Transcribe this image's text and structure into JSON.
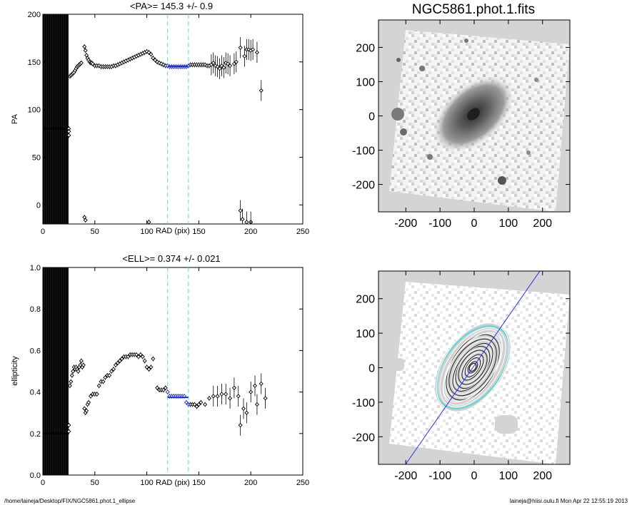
{
  "figure_title": "NGC5861.phot.1.fits",
  "footer": {
    "path": "/home/laineja/Desktop/FIX/NGC5861.phot.1_ellipse",
    "stamp": "laineja@hiisi.oulu.fi  Mon Apr 22 12:55:19 2013"
  },
  "colors": {
    "fit": "#1f2fd0",
    "guide": "#5fd8d8",
    "mask": "#d4d4d4",
    "galaxy": "#555555",
    "major_axis": "#2233ee"
  },
  "chart_data": [
    {
      "type": "scatter",
      "title": "<PA>= 145.3 +/-   0.9",
      "xlabel": "RAD (pix)",
      "ylabel": "PA",
      "xlim": [
        0,
        250
      ],
      "ylim": [
        -20,
        200
      ],
      "xticks": [
        0,
        50,
        100,
        150,
        200,
        250
      ],
      "yticks": [
        0,
        50,
        100,
        150,
        200
      ],
      "guide_x": [
        120,
        140
      ],
      "fit_line": {
        "x": [
          120,
          140
        ],
        "y": 145.3
      },
      "inner_dense_region": {
        "x_from": 0,
        "x_to": 25,
        "y_level": 80
      },
      "points": [
        [
          26,
          135
        ],
        [
          27,
          136
        ],
        [
          28,
          137
        ],
        [
          29,
          138
        ],
        [
          30,
          139
        ],
        [
          31,
          141
        ],
        [
          32,
          143
        ],
        [
          33,
          145
        ],
        [
          34,
          146
        ],
        [
          35,
          147
        ],
        [
          36,
          148
        ],
        [
          37,
          149
        ],
        [
          40,
          166
        ],
        [
          41,
          162
        ],
        [
          42,
          157
        ],
        [
          43,
          154
        ],
        [
          44,
          152
        ],
        [
          45,
          150
        ],
        [
          46,
          149
        ],
        [
          47,
          149
        ],
        [
          48,
          148
        ],
        [
          50,
          146
        ],
        [
          52,
          146
        ],
        [
          54,
          146
        ],
        [
          56,
          145
        ],
        [
          58,
          145
        ],
        [
          60,
          145
        ],
        [
          62,
          145
        ],
        [
          64,
          145
        ],
        [
          66,
          145
        ],
        [
          68,
          146
        ],
        [
          70,
          146
        ],
        [
          72,
          147
        ],
        [
          74,
          148
        ],
        [
          76,
          149
        ],
        [
          78,
          150
        ],
        [
          80,
          151
        ],
        [
          82,
          152
        ],
        [
          84,
          153
        ],
        [
          86,
          154
        ],
        [
          88,
          155
        ],
        [
          90,
          156
        ],
        [
          92,
          157
        ],
        [
          94,
          158
        ],
        [
          96,
          159
        ],
        [
          98,
          160
        ],
        [
          100,
          161
        ],
        [
          102,
          160
        ],
        [
          104,
          158
        ],
        [
          106,
          154
        ],
        [
          108,
          152
        ],
        [
          110,
          150
        ],
        [
          112,
          149
        ],
        [
          114,
          148
        ],
        [
          116,
          147
        ],
        [
          118,
          146
        ],
        [
          120,
          146
        ],
        [
          122,
          145
        ],
        [
          124,
          145
        ],
        [
          126,
          145
        ],
        [
          128,
          145
        ],
        [
          130,
          145
        ],
        [
          132,
          145
        ],
        [
          134,
          145
        ],
        [
          136,
          145
        ],
        [
          138,
          145
        ],
        [
          140,
          146
        ],
        [
          142,
          147
        ],
        [
          144,
          147
        ],
        [
          146,
          147
        ],
        [
          148,
          147
        ],
        [
          150,
          147
        ],
        [
          152,
          147
        ],
        [
          154,
          147
        ],
        [
          156,
          147
        ],
        [
          158,
          146
        ],
        [
          160,
          146
        ],
        [
          162,
          147
        ],
        [
          164,
          149
        ],
        [
          166,
          146
        ],
        [
          168,
          145
        ],
        [
          170,
          143
        ],
        [
          172,
          146
        ],
        [
          174,
          144
        ],
        [
          176,
          149
        ],
        [
          178,
          148
        ],
        [
          180,
          146
        ],
        [
          184,
          148
        ],
        [
          186,
          150
        ],
        [
          190,
          165
        ],
        [
          194,
          156
        ],
        [
          196,
          163
        ],
        [
          198,
          163
        ],
        [
          200,
          162
        ],
        [
          202,
          163
        ],
        [
          206,
          160
        ],
        [
          210,
          120
        ],
        [
          25,
          80
        ],
        [
          25,
          77
        ],
        [
          25,
          73
        ],
        [
          40,
          -13
        ],
        [
          41,
          -16
        ],
        [
          102,
          -18
        ],
        [
          190,
          -6
        ],
        [
          192,
          -15
        ],
        [
          196,
          -18
        ],
        [
          200,
          -18
        ]
      ]
    },
    {
      "type": "scatter",
      "title": "<ELL>= 0.374 +/-  0.021",
      "xlabel": "RAD (pix)",
      "ylabel": "ellipticity",
      "xlim": [
        0,
        250
      ],
      "ylim": [
        0.0,
        1.0
      ],
      "xticks": [
        0,
        50,
        100,
        150,
        200,
        250
      ],
      "yticks": [
        0.0,
        0.2,
        0.4,
        0.6,
        0.8,
        1.0
      ],
      "ytick_labels": [
        "0.0",
        "0.2",
        "0.4",
        "0.6",
        "0.8",
        "1.0"
      ],
      "guide_x": [
        120,
        140
      ],
      "fit_line": {
        "x": [
          120,
          140
        ],
        "y": 0.374
      },
      "inner_dense_region": {
        "x_from": 0,
        "x_to": 25,
        "y_level": 0.2
      },
      "points": [
        [
          25,
          0.24
        ],
        [
          25,
          0.21
        ],
        [
          26,
          0.43
        ],
        [
          27,
          0.45
        ],
        [
          28,
          0.48
        ],
        [
          29,
          0.5
        ],
        [
          30,
          0.52
        ],
        [
          31,
          0.51
        ],
        [
          32,
          0.52
        ],
        [
          33,
          0.51
        ],
        [
          34,
          0.5
        ],
        [
          35,
          0.52
        ],
        [
          36,
          0.53
        ],
        [
          37,
          0.55
        ],
        [
          38,
          0.52
        ],
        [
          39,
          0.53
        ],
        [
          40,
          0.32
        ],
        [
          41,
          0.3
        ],
        [
          42,
          0.31
        ],
        [
          43,
          0.34
        ],
        [
          44,
          0.35
        ],
        [
          46,
          0.38
        ],
        [
          48,
          0.39
        ],
        [
          50,
          0.39
        ],
        [
          52,
          0.39
        ],
        [
          54,
          0.43
        ],
        [
          56,
          0.45
        ],
        [
          58,
          0.45
        ],
        [
          60,
          0.47
        ],
        [
          62,
          0.48
        ],
        [
          64,
          0.48
        ],
        [
          66,
          0.5
        ],
        [
          68,
          0.51
        ],
        [
          70,
          0.53
        ],
        [
          72,
          0.54
        ],
        [
          74,
          0.55
        ],
        [
          76,
          0.56
        ],
        [
          78,
          0.57
        ],
        [
          80,
          0.57
        ],
        [
          82,
          0.57
        ],
        [
          84,
          0.58
        ],
        [
          86,
          0.58
        ],
        [
          88,
          0.58
        ],
        [
          90,
          0.58
        ],
        [
          92,
          0.57
        ],
        [
          94,
          0.58
        ],
        [
          96,
          0.57
        ],
        [
          98,
          0.55
        ],
        [
          100,
          0.52
        ],
        [
          102,
          0.51
        ],
        [
          104,
          0.52
        ],
        [
          106,
          0.56
        ],
        [
          110,
          0.42
        ],
        [
          112,
          0.41
        ],
        [
          114,
          0.41
        ],
        [
          116,
          0.41
        ],
        [
          118,
          0.42
        ],
        [
          120,
          0.4
        ],
        [
          122,
          0.38
        ],
        [
          124,
          0.38
        ],
        [
          126,
          0.38
        ],
        [
          128,
          0.38
        ],
        [
          130,
          0.38
        ],
        [
          132,
          0.38
        ],
        [
          134,
          0.38
        ],
        [
          136,
          0.38
        ],
        [
          138,
          0.35
        ],
        [
          140,
          0.34
        ],
        [
          142,
          0.34
        ],
        [
          144,
          0.34
        ],
        [
          146,
          0.34
        ],
        [
          148,
          0.33
        ],
        [
          150,
          0.34
        ],
        [
          152,
          0.35
        ],
        [
          156,
          0.34
        ],
        [
          160,
          0.37
        ],
        [
          164,
          0.38
        ],
        [
          168,
          0.38
        ],
        [
          172,
          0.39
        ],
        [
          176,
          0.39
        ],
        [
          180,
          0.37
        ],
        [
          184,
          0.42
        ],
        [
          188,
          0.38
        ],
        [
          190,
          0.24
        ],
        [
          193,
          0.32
        ],
        [
          196,
          0.3
        ],
        [
          200,
          0.4
        ],
        [
          204,
          0.43
        ],
        [
          206,
          0.34
        ],
        [
          210,
          0.44
        ],
        [
          214,
          0.37
        ]
      ]
    },
    {
      "type": "image",
      "title": "NGC5861.phot.1.fits",
      "xlim": [
        -280,
        280
      ],
      "ylim": [
        -280,
        280
      ],
      "xticks": [
        -200,
        -100,
        0,
        100,
        200
      ],
      "yticks": [
        -200,
        -100,
        0,
        100,
        200
      ]
    },
    {
      "type": "image",
      "xlim": [
        -280,
        280
      ],
      "ylim": [
        -280,
        280
      ],
      "xticks": [
        -200,
        -100,
        0,
        100,
        200
      ],
      "yticks": [
        -200,
        -100,
        0,
        100,
        200
      ],
      "isophotes": true,
      "major_axis_pa": 145.3
    }
  ]
}
